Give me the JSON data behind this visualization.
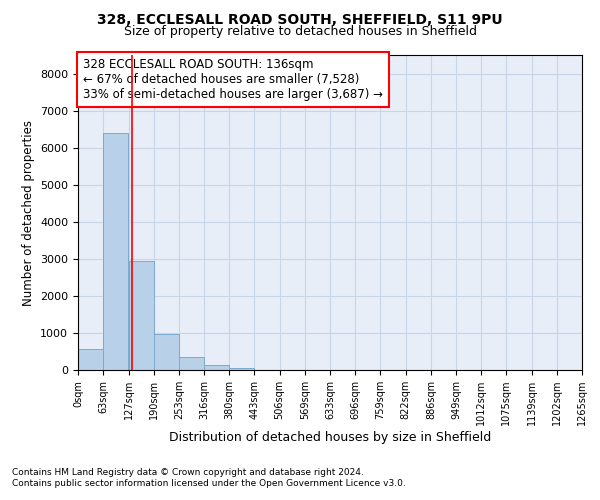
{
  "title1": "328, ECCLESALL ROAD SOUTH, SHEFFIELD, S11 9PU",
  "title2": "Size of property relative to detached houses in Sheffield",
  "xlabel": "Distribution of detached houses by size in Sheffield",
  "ylabel": "Number of detached properties",
  "footnote1": "Contains HM Land Registry data © Crown copyright and database right 2024.",
  "footnote2": "Contains public sector information licensed under the Open Government Licence v3.0.",
  "annotation_line1": "328 ECCLESALL ROAD SOUTH: 136sqm",
  "annotation_line2": "← 67% of detached houses are smaller (7,528)",
  "annotation_line3": "33% of semi-detached houses are larger (3,687) →",
  "bar_color": "#b8d0e8",
  "bar_edge_color": "#7aaace",
  "property_size": 136,
  "red_line_x": 136,
  "bins": [
    0,
    63,
    127,
    190,
    253,
    316,
    380,
    443,
    506,
    569,
    633,
    696,
    759,
    822,
    886,
    949,
    1012,
    1075,
    1139,
    1202,
    1265
  ],
  "bin_labels": [
    "0sqm",
    "63sqm",
    "127sqm",
    "190sqm",
    "253sqm",
    "316sqm",
    "380sqm",
    "443sqm",
    "506sqm",
    "569sqm",
    "633sqm",
    "696sqm",
    "759sqm",
    "822sqm",
    "886sqm",
    "949sqm",
    "1012sqm",
    "1075sqm",
    "1139sqm",
    "1202sqm",
    "1265sqm"
  ],
  "bar_heights": [
    560,
    6400,
    2930,
    970,
    350,
    140,
    65,
    0,
    0,
    0,
    0,
    0,
    0,
    0,
    0,
    0,
    0,
    0,
    0,
    0
  ],
  "ylim": [
    0,
    8500
  ],
  "yticks": [
    0,
    1000,
    2000,
    3000,
    4000,
    5000,
    6000,
    7000,
    8000
  ],
  "grid_color": "#c8d4e8",
  "bg_color": "#ffffff",
  "plot_bg_color": "#e8eef8"
}
